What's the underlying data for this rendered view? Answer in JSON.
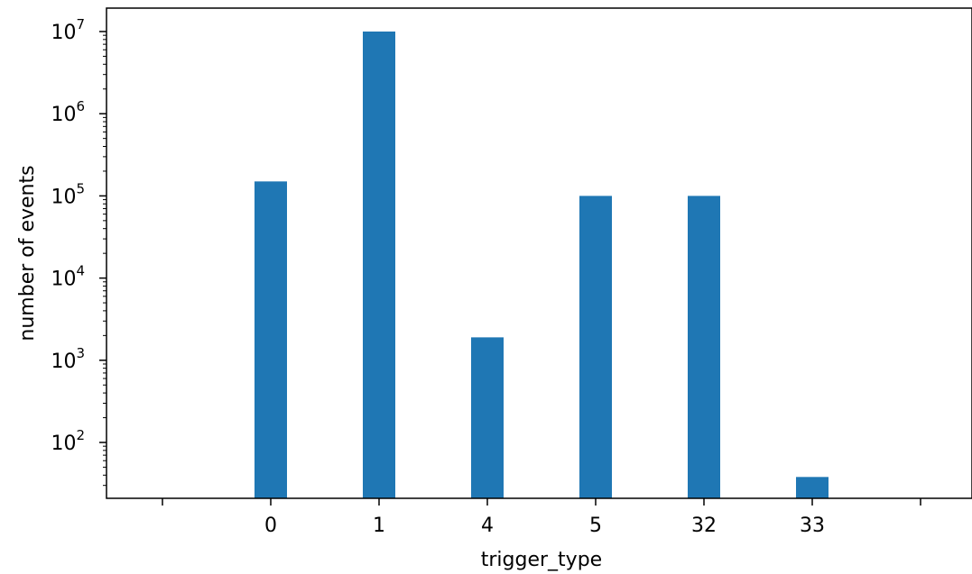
{
  "chart_data": {
    "type": "bar",
    "title": "",
    "xlabel": "trigger_type",
    "ylabel": "number of events",
    "categories": [
      "0",
      "1",
      "4",
      "5",
      "32",
      "33"
    ],
    "values": [
      150000,
      10000000,
      1900,
      100000,
      100000,
      38
    ],
    "yscale": "log",
    "ylim": [
      20,
      20000000
    ],
    "y_ticks": [
      {
        "base": "10",
        "exp": "2",
        "value": 100
      },
      {
        "base": "10",
        "exp": "3",
        "value": 1000
      },
      {
        "base": "10",
        "exp": "4",
        "value": 10000
      },
      {
        "base": "10",
        "exp": "5",
        "value": 100000
      },
      {
        "base": "10",
        "exp": "6",
        "value": 1000000
      },
      {
        "base": "10",
        "exp": "7",
        "value": 10000000
      }
    ],
    "bar_color": "#1f77b4",
    "grid": false,
    "legend": "none"
  }
}
